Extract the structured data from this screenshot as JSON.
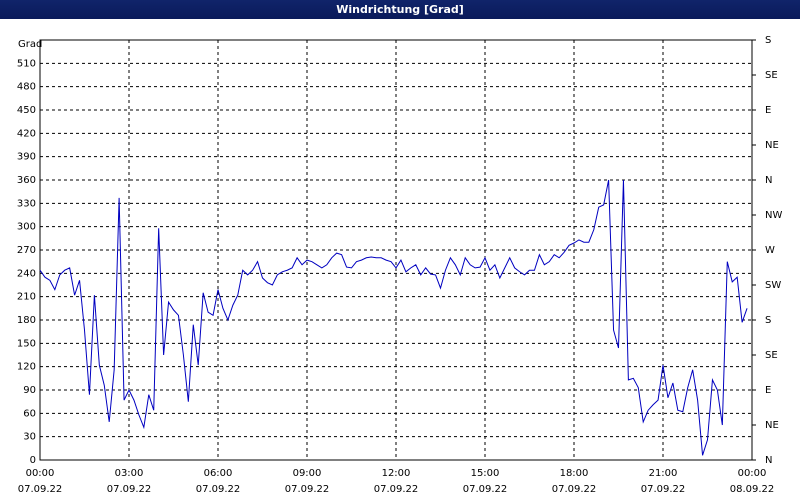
{
  "chart_data": {
    "type": "line",
    "title": "Windrichtung [Grad]",
    "y_label": "Grad",
    "x": [
      0,
      10,
      20,
      30,
      40,
      50,
      60,
      70,
      80,
      90,
      100,
      110,
      120,
      130,
      140,
      150,
      160,
      170,
      180,
      190,
      200,
      210,
      220,
      230,
      240,
      250,
      260,
      270,
      280,
      290,
      300,
      310,
      320,
      330,
      340,
      350,
      360,
      370,
      380,
      390,
      400,
      410,
      420,
      430,
      440,
      450,
      460,
      470,
      480,
      490,
      500,
      510,
      520,
      530,
      540,
      550,
      560,
      570,
      580,
      590,
      600,
      610,
      620,
      630,
      640,
      650,
      660,
      670,
      680,
      690,
      700,
      710,
      720,
      730,
      740,
      750,
      760,
      770,
      780,
      790,
      800,
      810,
      820,
      830,
      840,
      850,
      860,
      870,
      880,
      890,
      900,
      910,
      920,
      930,
      940,
      950,
      960,
      970,
      980,
      990,
      1000,
      1010,
      1020,
      1030,
      1040,
      1050,
      1060,
      1070,
      1080,
      1090,
      1100,
      1110,
      1120,
      1130,
      1140,
      1150,
      1160,
      1170,
      1180,
      1190,
      1200,
      1210,
      1220,
      1230,
      1240,
      1250,
      1260,
      1270,
      1280,
      1290,
      1300,
      1310,
      1320,
      1330,
      1340,
      1350,
      1360,
      1370,
      1380,
      1390,
      1400,
      1410,
      1420,
      1430
    ],
    "series": [
      {
        "name": "Windrichtung",
        "color": "#0000c0",
        "values": [
          244,
          235,
          231,
          219,
          238,
          244,
          247,
          212,
          231,
          167,
          84,
          212,
          122,
          96,
          49,
          116,
          337,
          77,
          90,
          77,
          58,
          42,
          84,
          64,
          298,
          135,
          203,
          193,
          186,
          135,
          75,
          174,
          122,
          215,
          190,
          186,
          219,
          195,
          180,
          199,
          212,
          244,
          238,
          244,
          255,
          234,
          228,
          225,
          238,
          242,
          244,
          247,
          260,
          251,
          257,
          255,
          251,
          247,
          251,
          260,
          266,
          264,
          248,
          247,
          255,
          257,
          260,
          261,
          260,
          260,
          257,
          255,
          247,
          257,
          242,
          247,
          251,
          238,
          247,
          239,
          238,
          221,
          244,
          260,
          251,
          238,
          260,
          251,
          247,
          248,
          260,
          244,
          251,
          234,
          247,
          260,
          247,
          242,
          238,
          244,
          244,
          264,
          251,
          255,
          264,
          260,
          267,
          276,
          279,
          283,
          280,
          280,
          296,
          325,
          328,
          360,
          167,
          144,
          360,
          103,
          105,
          93,
          49,
          64,
          71,
          77,
          122,
          80,
          99,
          64,
          62,
          93,
          116,
          77,
          6,
          26,
          103,
          90,
          45,
          255,
          229,
          235,
          177,
          195
        ]
      }
    ],
    "xlim": [
      0,
      1440
    ],
    "xticks": [
      {
        "value": 0,
        "label": "00:00\n07.09.22"
      },
      {
        "value": 180,
        "label": "03:00\n07.09.22"
      },
      {
        "value": 360,
        "label": "06:00\n07.09.22"
      },
      {
        "value": 540,
        "label": "09:00\n07.09.22"
      },
      {
        "value": 720,
        "label": "12:00\n07.09.22"
      },
      {
        "value": 900,
        "label": "15:00\n07.09.22"
      },
      {
        "value": 1080,
        "label": "18:00\n07.09.22"
      },
      {
        "value": 1260,
        "label": "21:00\n07.09.22"
      },
      {
        "value": 1440,
        "label": "00:00\n08.09.22"
      }
    ],
    "ylim": [
      0,
      540
    ],
    "yticks": [
      0,
      30,
      60,
      90,
      120,
      150,
      180,
      210,
      240,
      270,
      300,
      330,
      360,
      390,
      420,
      450,
      480,
      510
    ],
    "y2lim": [
      0,
      540
    ],
    "y2ticks": [
      {
        "value": 0,
        "label": "N"
      },
      {
        "value": 45,
        "label": "NE"
      },
      {
        "value": 90,
        "label": "E"
      },
      {
        "value": 135,
        "label": "SE"
      },
      {
        "value": 180,
        "label": "S"
      },
      {
        "value": 225,
        "label": "SW"
      },
      {
        "value": 270,
        "label": "W"
      },
      {
        "value": 315,
        "label": "NW"
      },
      {
        "value": 360,
        "label": "N"
      },
      {
        "value": 405,
        "label": "NE"
      },
      {
        "value": 450,
        "label": "E"
      },
      {
        "value": 495,
        "label": "SE"
      },
      {
        "value": 540,
        "label": "S"
      }
    ],
    "grid": true
  }
}
